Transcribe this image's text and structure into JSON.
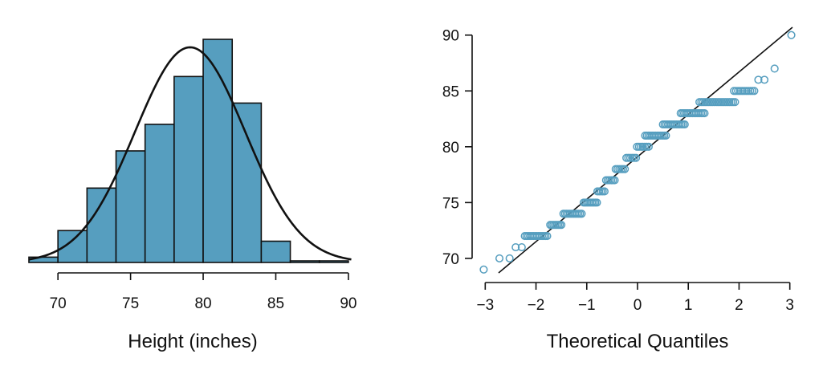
{
  "colors": {
    "bar_fill": "#569ebf",
    "point_stroke": "#569ebf",
    "ink": "#111111"
  },
  "chart_data": [
    {
      "type": "bar",
      "subtype": "histogram",
      "xlabel": "Height (inches)",
      "ylabel": "",
      "bins": [
        {
          "start": 68,
          "end": 70,
          "count": 1
        },
        {
          "start": 70,
          "end": 72,
          "count": 6
        },
        {
          "start": 72,
          "end": 74,
          "count": 14
        },
        {
          "start": 74,
          "end": 76,
          "count": 21
        },
        {
          "start": 76,
          "end": 78,
          "count": 26
        },
        {
          "start": 78,
          "end": 80,
          "count": 35
        },
        {
          "start": 80,
          "end": 82,
          "count": 42
        },
        {
          "start": 82,
          "end": 84,
          "count": 30
        },
        {
          "start": 84,
          "end": 86,
          "count": 4
        },
        {
          "start": 86,
          "end": 88,
          "count": 0.3
        },
        {
          "start": 88,
          "end": 90,
          "count": 0.3
        }
      ],
      "normal_curve": {
        "mean": 79.1,
        "sd": 3.8,
        "peak": 40.5
      },
      "xlim": [
        68,
        91
      ],
      "ylim": [
        0,
        42
      ],
      "x_ticks": [
        "70",
        "75",
        "80",
        "85",
        "90"
      ],
      "grid": false
    },
    {
      "type": "scatter",
      "subtype": "normal-qq",
      "xlabel": "Theoretical Quantiles",
      "ylabel": "",
      "xlim": [
        -3.1,
        3.1
      ],
      "ylim": [
        68.7,
        90.7
      ],
      "x_ticks": [
        "−3",
        "−2",
        "−1",
        "0",
        "1",
        "2",
        "3"
      ],
      "y_ticks": [
        "70",
        "75",
        "80",
        "85",
        "90"
      ],
      "reference_line": {
        "intercept": 79.1,
        "slope": 3.8
      },
      "point_groups": [
        {
          "y": 69,
          "x": [
            -3.03
          ]
        },
        {
          "y": 70,
          "x": [
            -2.72,
            -2.52
          ]
        },
        {
          "y": 71,
          "x": [
            -2.4,
            -2.28
          ]
        },
        {
          "y": 72,
          "x_from": -2.22,
          "x_to": -1.78,
          "n": 14
        },
        {
          "y": 73,
          "x_from": -1.72,
          "x_to": -1.5,
          "n": 8
        },
        {
          "y": 74,
          "x_from": -1.46,
          "x_to": -1.1,
          "n": 12
        },
        {
          "y": 75,
          "x_from": -1.06,
          "x_to": -0.8,
          "n": 9
        },
        {
          "y": 76,
          "x_from": -0.79,
          "x_to": -0.65,
          "n": 5
        },
        {
          "y": 77,
          "x_from": -0.62,
          "x_to": -0.45,
          "n": 6
        },
        {
          "y": 78,
          "x_from": -0.43,
          "x_to": -0.25,
          "n": 6
        },
        {
          "y": 79,
          "x_from": -0.22,
          "x_to": -0.03,
          "n": 6
        },
        {
          "y": 80,
          "x_from": -0.01,
          "x_to": 0.22,
          "n": 7
        },
        {
          "y": 81,
          "x_from": 0.15,
          "x_to": 0.56,
          "n": 13
        },
        {
          "y": 82,
          "x_from": 0.5,
          "x_to": 0.93,
          "n": 14
        },
        {
          "y": 83,
          "x_from": 0.85,
          "x_to": 1.32,
          "n": 15
        },
        {
          "y": 84,
          "x_from": 1.22,
          "x_to": 1.92,
          "n": 20
        },
        {
          "y": 85,
          "x_from": 1.9,
          "x_to": 2.3,
          "n": 11
        },
        {
          "y": 86,
          "x": [
            2.38,
            2.5
          ]
        },
        {
          "y": 87,
          "x": [
            2.7
          ]
        },
        {
          "y": 90,
          "x": [
            3.03
          ]
        }
      ],
      "grid": false
    }
  ]
}
